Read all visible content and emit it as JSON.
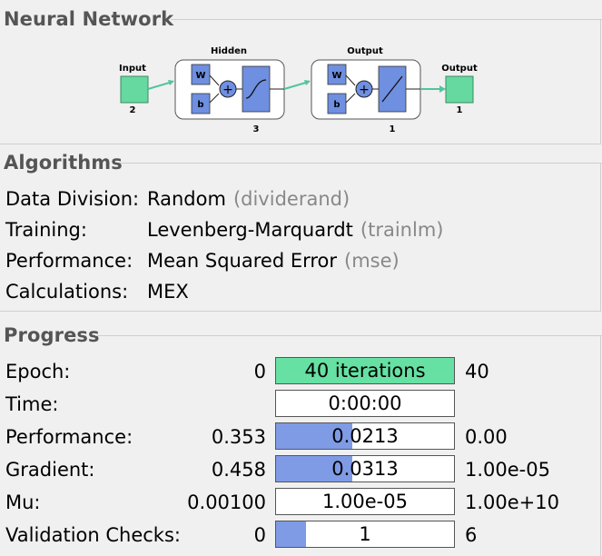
{
  "sections": {
    "network_title": "Neural Network",
    "algorithms_title": "Algorithms",
    "progress_title": "Progress"
  },
  "diagram": {
    "input_label": "Input",
    "input_size": "2",
    "hidden_label": "Hidden",
    "hidden_size": "3",
    "output_layer_label": "Output",
    "output_layer_size": "1",
    "output_label": "Output",
    "output_size": "1",
    "weight_symbol": "W",
    "bias_symbol": "b",
    "colors": {
      "io_box": "#66d9a0",
      "block": "#6f8fe0",
      "arrow": "#52c59a"
    }
  },
  "algorithms": {
    "data_division": {
      "label": "Data Division:",
      "value": "Random",
      "code": "(dividerand)"
    },
    "training": {
      "label": "Training:",
      "value": "Levenberg-Marquardt",
      "code": "(trainlm)"
    },
    "performance": {
      "label": "Performance:",
      "value": "Mean Squared Error",
      "code": "(mse)"
    },
    "calculations": {
      "label": "Calculations:",
      "value": "MEX"
    }
  },
  "progress": {
    "epoch": {
      "label": "Epoch:",
      "min": "0",
      "value": "40 iterations",
      "max": "40",
      "fill_fraction": 1.0,
      "fill_color": "#66e0a3"
    },
    "time": {
      "label": "Time:",
      "min": "",
      "value": "0:00:00",
      "max": "",
      "fill_fraction": 0
    },
    "performance": {
      "label": "Performance:",
      "min": "0.353",
      "value": "0.0213",
      "max": "0.00",
      "fill_fraction": 0.43
    },
    "gradient": {
      "label": "Gradient:",
      "min": "0.458",
      "value": "0.0313",
      "max": "1.00e-05",
      "fill_fraction": 0.43
    },
    "mu": {
      "label": "Mu:",
      "min": "0.00100",
      "value": "1.00e-05",
      "max": "1.00e+10",
      "fill_fraction": 0
    },
    "validation": {
      "label": "Validation Checks:",
      "min": "0",
      "value": "1",
      "max": "6",
      "fill_fraction": 0.167
    }
  }
}
